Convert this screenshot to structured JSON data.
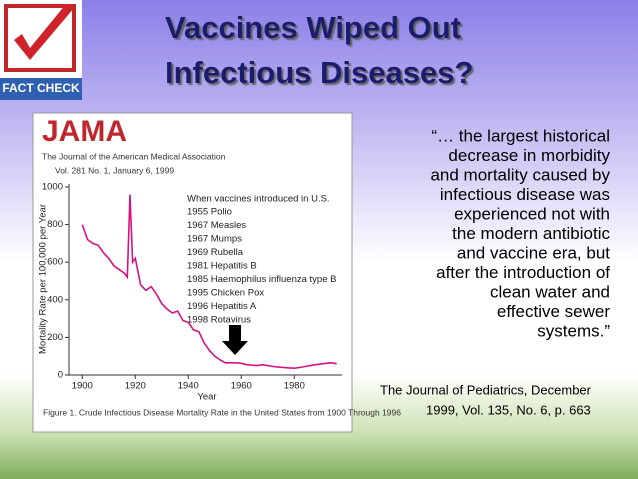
{
  "logo_text": "FACT CHECK",
  "title_lines": [
    "Vaccines Wiped Out",
    "Infectious Diseases?"
  ],
  "quote_lines": [
    "“… the largest historical",
    "decrease in morbidity",
    "and mortality caused by",
    "infectious disease was",
    "experienced not with",
    "the modern antibiotic",
    "and vaccine era, but",
    "after the introduction of",
    "clean water and",
    "effective sewer",
    "systems.”"
  ],
  "citation_lines": [
    "The Journal of Pediatrics, December",
    "1999, Vol. 135, No. 6, p. 663"
  ],
  "chart_data": {
    "type": "line",
    "journal": "JAMA",
    "journal_subtitle": "The Journal of the American Medical Association",
    "issue": "Vol. 281 No. 1, January 6, 1999",
    "ylabel": "Mortality Rate per 100,000 per Year",
    "xlabel": "Year",
    "caption": "Figure 1. Crude Infectious Disease Mortality Rate in the United States from 1900 Through 1996",
    "notes_title": "When vaccines introduced in U.S.",
    "notes": [
      "1955 Polio",
      "1967 Measles",
      "1967 Mumps",
      "1969 Rubella",
      "1981 Hepatitis B",
      "1985 Haemophilus influenza type B",
      "1995 Chicken Pox",
      "1996 Hepatitis A",
      "1998 Rotavirus"
    ],
    "x": [
      1900,
      1902,
      1904,
      1906,
      1908,
      1910,
      1912,
      1914,
      1916,
      1917,
      1918,
      1919,
      1920,
      1922,
      1924,
      1926,
      1928,
      1930,
      1932,
      1934,
      1936,
      1938,
      1940,
      1942,
      1944,
      1946,
      1948,
      1950,
      1952,
      1954,
      1956,
      1958,
      1960,
      1962,
      1964,
      1966,
      1968,
      1970,
      1972,
      1974,
      1976,
      1978,
      1980,
      1982,
      1984,
      1986,
      1988,
      1990,
      1992,
      1994,
      1996
    ],
    "series": [
      {
        "color": "#d4147e",
        "values": [
          800,
          720,
          700,
          690,
          650,
          620,
          580,
          560,
          540,
          520,
          960,
          600,
          620,
          480,
          450,
          470,
          430,
          380,
          350,
          330,
          340,
          290,
          280,
          240,
          230,
          170,
          130,
          100,
          80,
          65,
          65,
          65,
          62,
          55,
          52,
          50,
          55,
          50,
          45,
          42,
          40,
          38,
          36,
          40,
          45,
          50,
          55,
          58,
          62,
          65,
          60
        ]
      }
    ],
    "xlim": [
      1895,
      1998
    ],
    "ylim": [
      0,
      1000
    ],
    "xticks": [
      1900,
      1920,
      1940,
      1960,
      1980
    ],
    "yticks": [
      0,
      200,
      400,
      600,
      800,
      1000
    ]
  }
}
